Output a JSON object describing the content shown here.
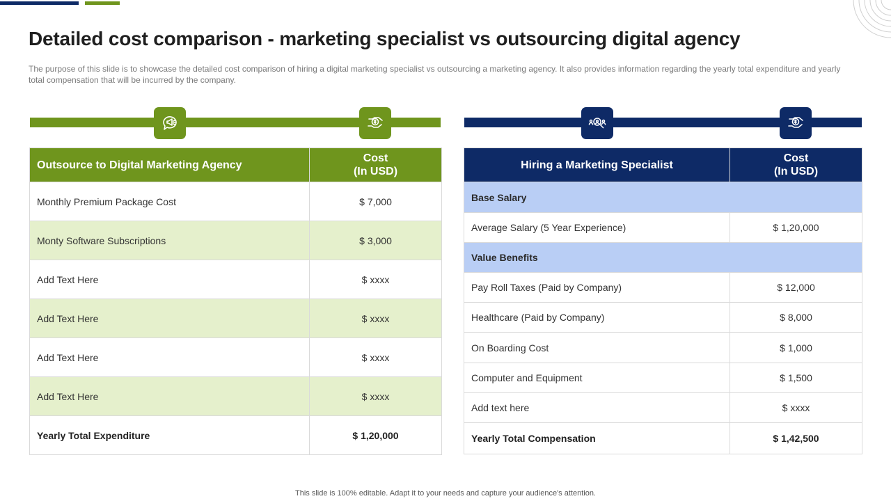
{
  "title": "Detailed cost comparison - marketing specialist vs outsourcing digital agency",
  "subtitle": "The purpose of this slide is to showcase the detailed cost comparison of hiring a digital marketing specialist vs outsourcing a marketing agency. It also provides information regarding the yearly total expenditure and yearly total compensation that will be incurred by the company.",
  "colors": {
    "green": "#6f951d",
    "navy": "#0e2a66",
    "light_green": "#e5f0cc",
    "light_blue": "#b9cef5"
  },
  "icons": {
    "agency": "megaphone-chat-icon",
    "cost_left": "dollar-hand-icon",
    "specialist": "people-search-icon",
    "cost_right": "dollar-hand-icon"
  },
  "agency_table": {
    "header": {
      "label": "Outsource to Digital Marketing Agency",
      "cost_line1": "Cost",
      "cost_line2": "(In USD)"
    },
    "rows": [
      {
        "label": "Monthly  Premium Package Cost",
        "value": "$ 7,000"
      },
      {
        "label": "Monty  Software Subscriptions",
        "value": "$ 3,000"
      },
      {
        "label": "Add Text Here",
        "value": "$ xxxx"
      },
      {
        "label": "Add Text Here",
        "value": "$ xxxx"
      },
      {
        "label": "Add Text Here",
        "value": "$ xxxx"
      },
      {
        "label": "Add Text Here",
        "value": "$ xxxx"
      }
    ],
    "total": {
      "label": "Yearly Total Expenditure",
      "value": "$ 1,20,000"
    }
  },
  "specialist_table": {
    "header": {
      "label": "Hiring a Marketing Specialist",
      "cost_line1": "Cost",
      "cost_line2": "(In USD)"
    },
    "section1": "Base Salary",
    "row1": {
      "label": "Average Salary (5 Year Experience)",
      "value": "$ 1,20,000"
    },
    "section2": "Value Benefits",
    "rows": [
      {
        "label": "Pay Roll Taxes (Paid by Company)",
        "value": "$ 12,000"
      },
      {
        "label": "Healthcare (Paid by Company)",
        "value": "$ 8,000"
      },
      {
        "label": "On Boarding Cost",
        "value": "$ 1,000"
      },
      {
        "label": "Computer  and Equipment",
        "value": "$ 1,500"
      },
      {
        "label": "Add text here",
        "value": "$ xxxx"
      }
    ],
    "total": {
      "label": "Yearly Total Compensation",
      "value": "$ 1,42,500"
    }
  },
  "footer": "This slide is 100% editable. Adapt it to your needs and capture your audience's attention."
}
